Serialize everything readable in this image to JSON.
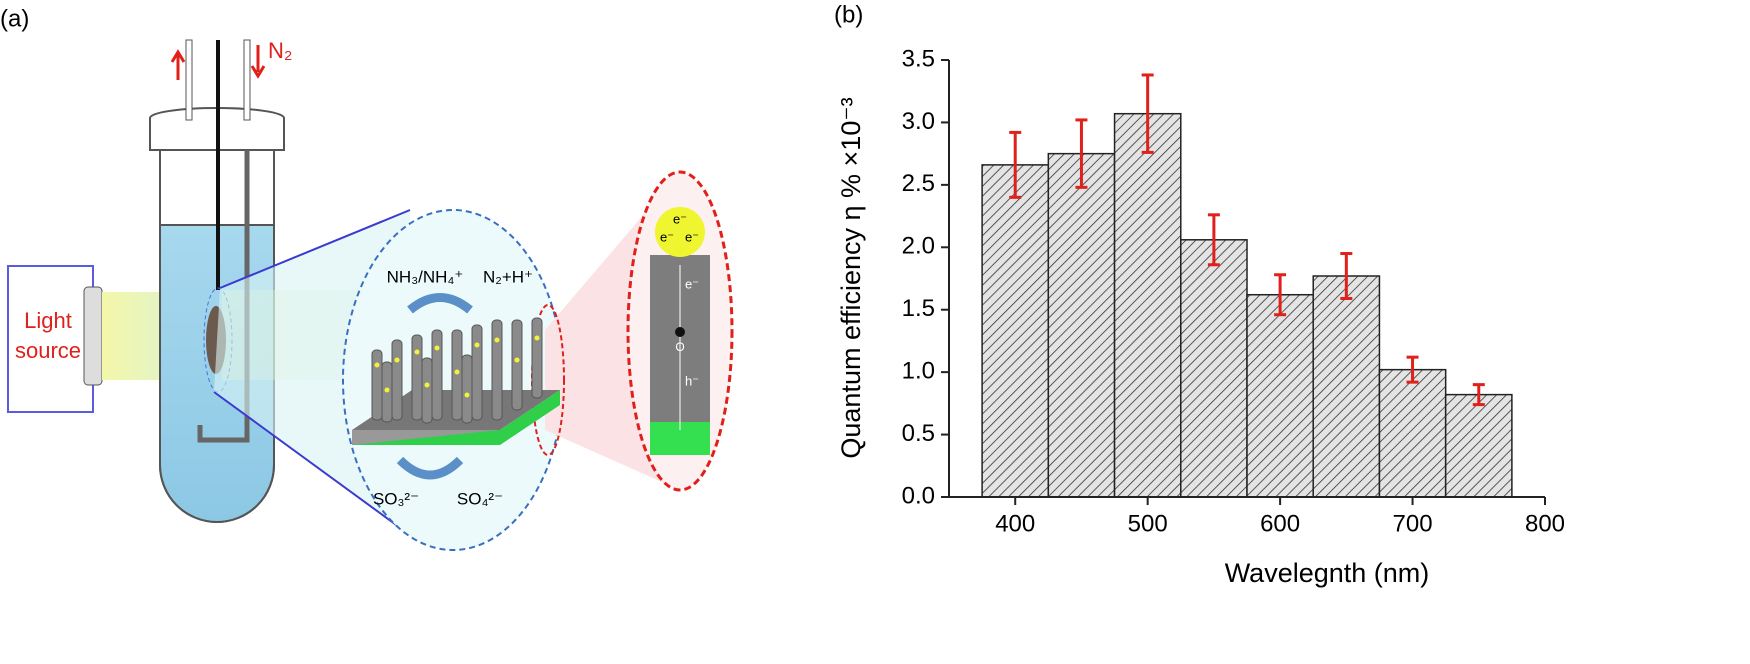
{
  "panel_a": {
    "label": "(a)",
    "gas": "N₂",
    "light_source": [
      "Light",
      "source"
    ],
    "products": "NH₃/NH₄⁺",
    "reactants": "N₂+H⁺",
    "donor": "SO₃²⁻",
    "donor_product": "SO₄²⁻",
    "electrons": [
      "e⁻",
      "e⁻",
      "e⁻",
      "e⁻"
    ],
    "hole": "h⁻",
    "center": "O"
  },
  "chart_data": {
    "type": "histogram",
    "panel_label": "(b)",
    "x_label": "Wavelegnth (nm)",
    "y_label": "Quantum efficiency η % ×10⁻³",
    "bins": [
      375,
      425,
      475,
      525,
      575,
      625,
      675,
      725,
      775
    ],
    "values": [
      2.66,
      2.75,
      3.07,
      2.06,
      1.62,
      1.77,
      1.02,
      0.82
    ],
    "errors": [
      0.26,
      0.27,
      0.31,
      0.2,
      0.16,
      0.18,
      0.1,
      0.08
    ],
    "color": "#d9d9d9",
    "error_color": "#e0201b",
    "xlim": [
      350,
      800
    ],
    "xticks": [
      400,
      500,
      600,
      700,
      800
    ],
    "ylim": [
      0,
      3.5
    ],
    "yticks": [
      {
        "value": 0,
        "label": "0.0"
      },
      0.5,
      {
        "value": 1,
        "label": "1.0"
      },
      1.5,
      {
        "value": 2,
        "label": "2.0"
      },
      2.5,
      {
        "value": 3,
        "label": "3.0"
      },
      3.5
    ]
  }
}
